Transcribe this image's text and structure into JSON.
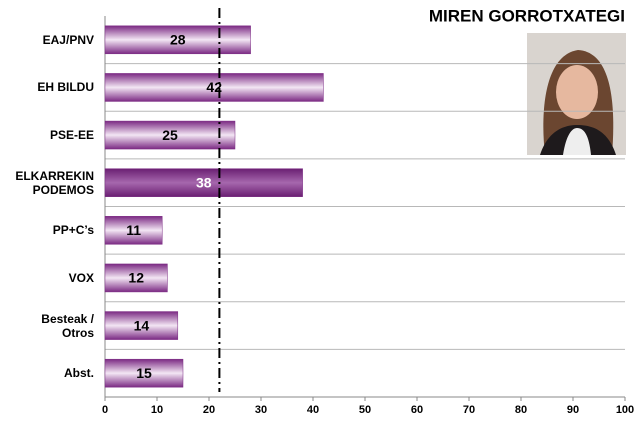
{
  "chart_data": {
    "type": "barh",
    "title": "MIREN GORROTXATEGI",
    "categories": [
      "EAJ/PNV",
      "EH BILDU",
      "PSE-EE",
      "ELKARREKIN\nPODEMOS",
      "PP+C’s",
      "VOX",
      "Besteak /\nOtros",
      "Abst."
    ],
    "values": [
      28,
      42,
      25,
      38,
      11,
      12,
      14,
      15
    ],
    "label_colors": [
      "#000000",
      "#000000",
      "#000000",
      "#ffffff",
      "#000000",
      "#000000",
      "#000000",
      "#000000"
    ],
    "color": "#7b2a83",
    "xlim": [
      0,
      100
    ],
    "xticks": [
      0,
      10,
      20,
      30,
      40,
      50,
      60,
      70,
      80,
      90,
      100
    ],
    "reference_x": 22,
    "grid": true
  }
}
